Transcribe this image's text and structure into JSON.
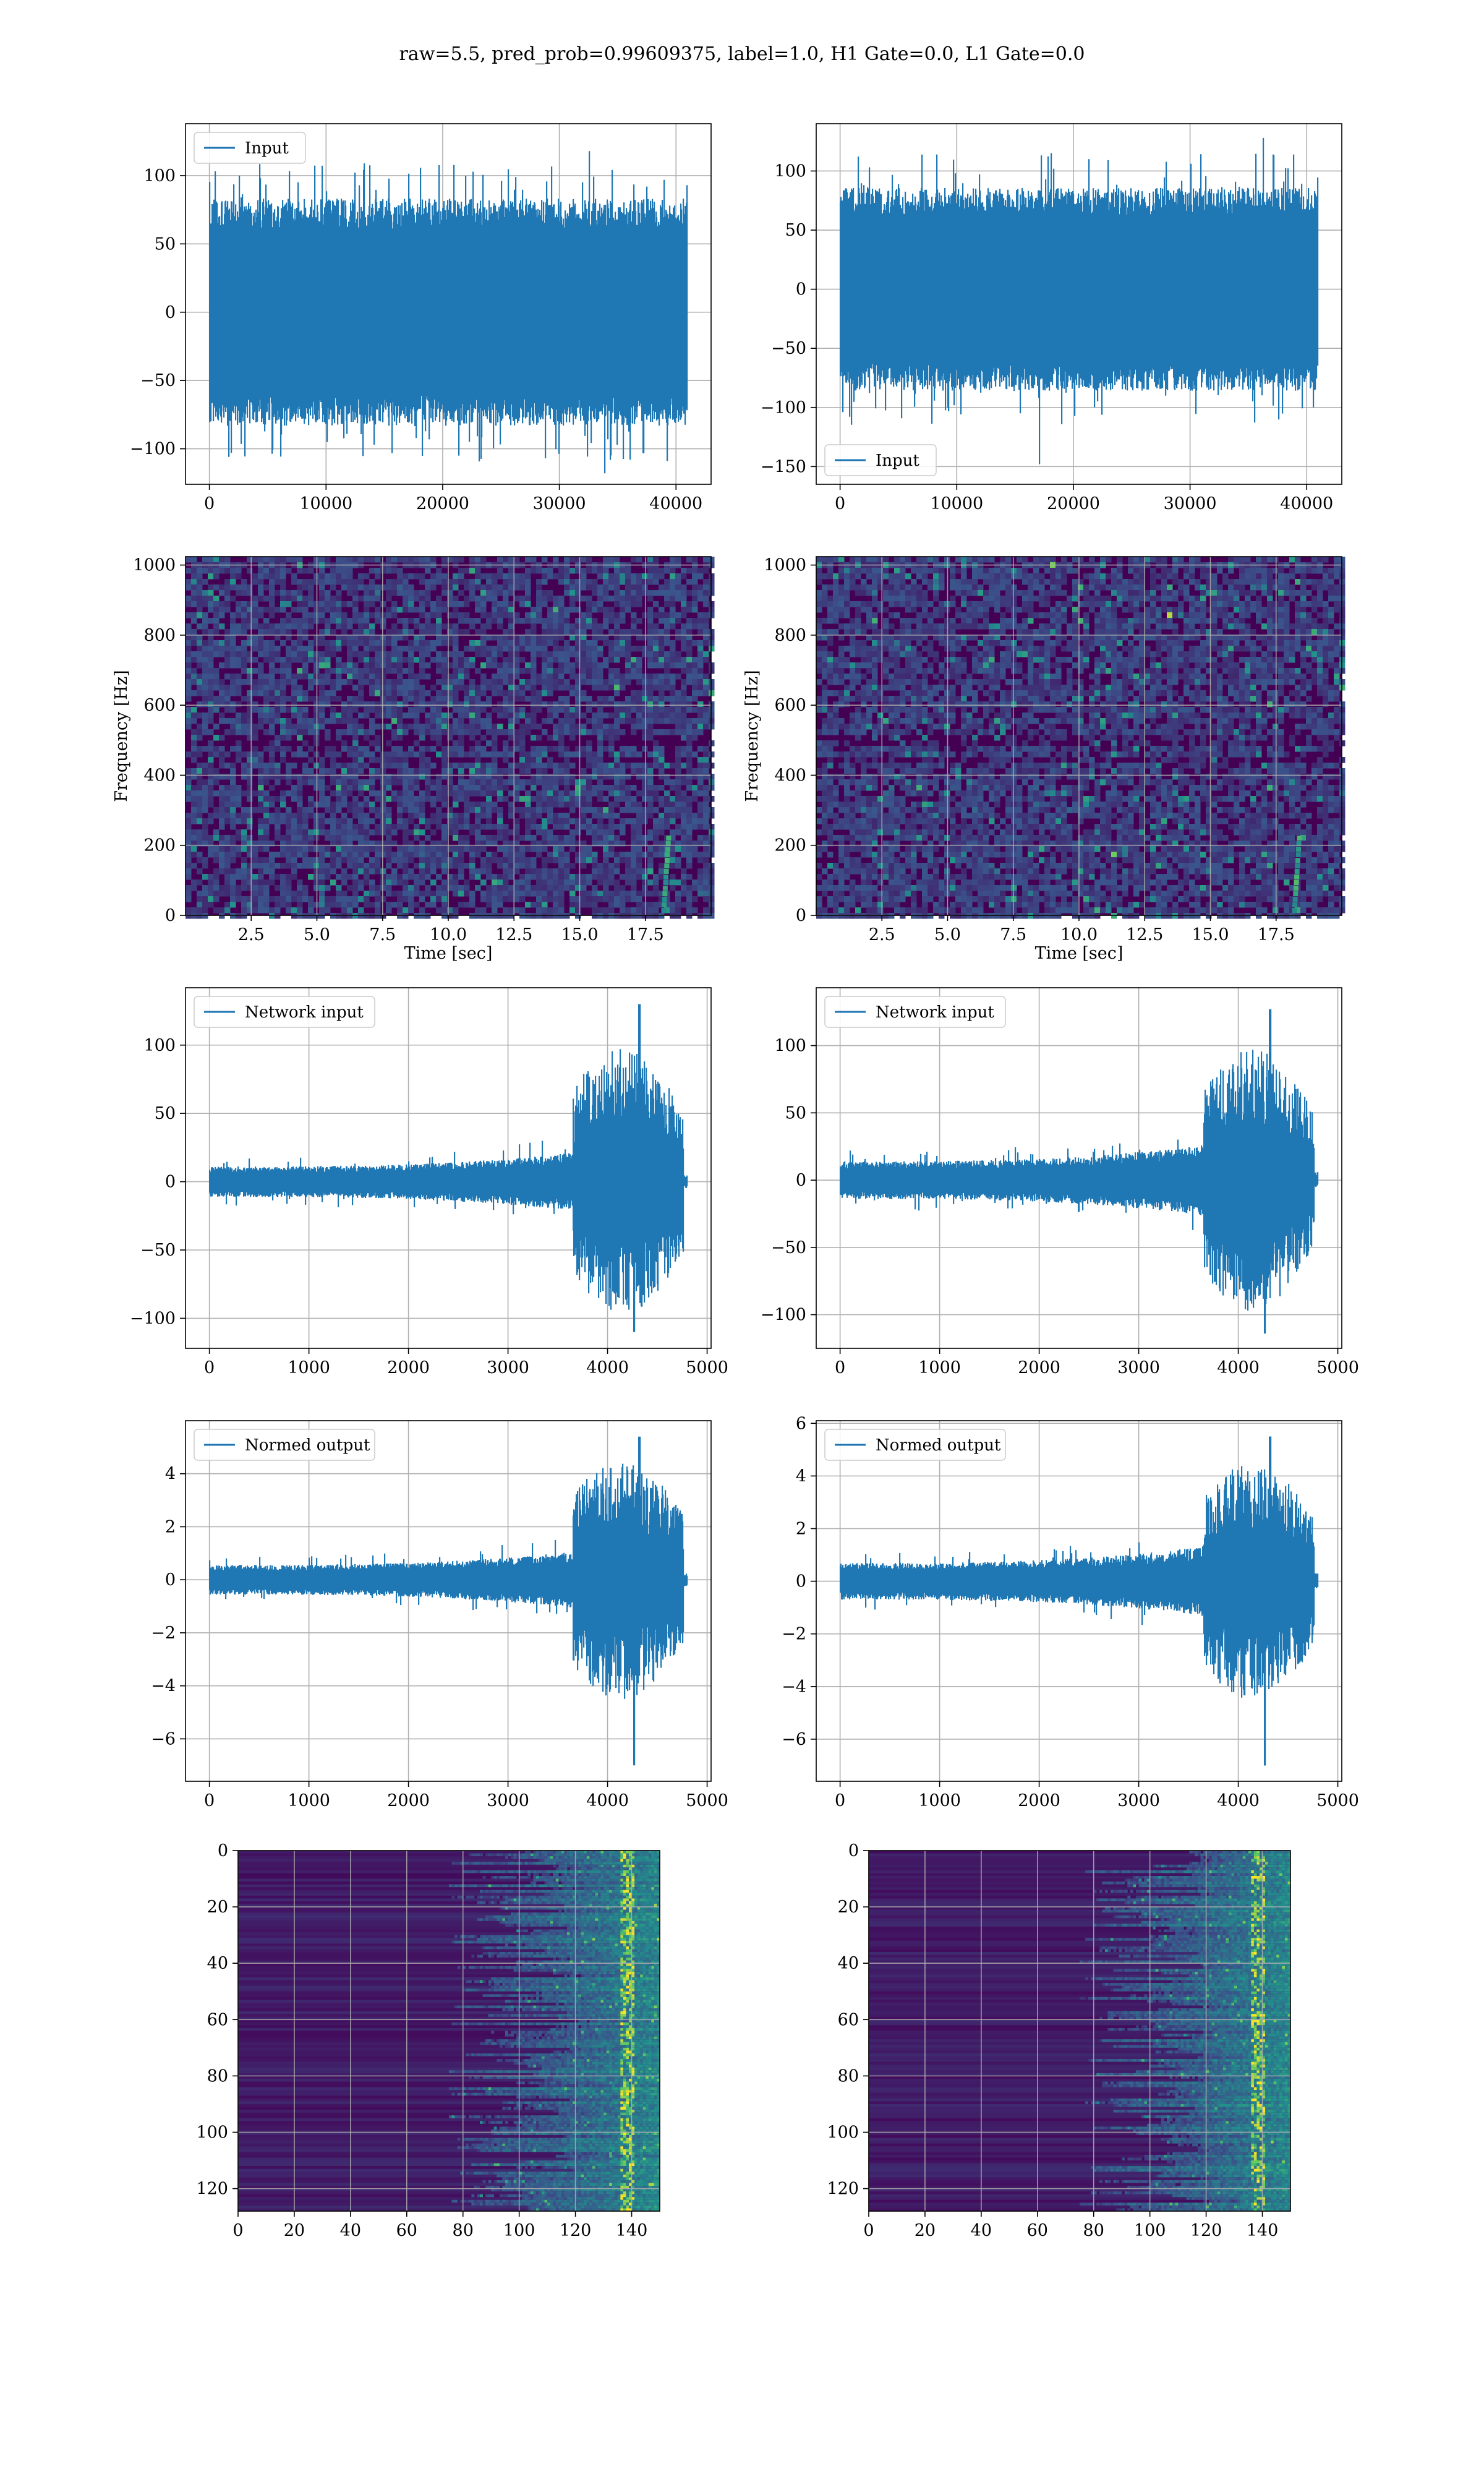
{
  "figure": {
    "title": "raw=5.5, pred_prob=0.99609375, label=1.0, H1 Gate=0.0, L1 Gate=0.0"
  },
  "colors": {
    "line": "#1f77b4",
    "viridis_low": "#440154",
    "viridis_mid": "#21918c",
    "viridis_high": "#fde725",
    "grid": "#b0b0b0"
  },
  "chart_data": [
    {
      "id": "row1-left",
      "type": "line",
      "series": [
        {
          "name": "Input",
          "kind": "noise",
          "n": 40960,
          "amp_std": 32,
          "peak_max": 118,
          "peak_min": -118
        }
      ],
      "xlim": [
        -2048,
        43008
      ],
      "ylim": [
        -126,
        138
      ],
      "xticks": [
        0,
        10000,
        20000,
        30000,
        40000
      ],
      "xticklabels": [
        "0",
        "10000",
        "20000",
        "30000",
        "40000"
      ],
      "yticks": [
        -100,
        -50,
        0,
        50,
        100
      ],
      "yticklabels": [
        "−100",
        "−50",
        "0",
        "50",
        "100"
      ],
      "legend": "upper-left",
      "grid": true,
      "xlabel": "",
      "ylabel": ""
    },
    {
      "id": "row1-right",
      "type": "line",
      "series": [
        {
          "name": "Input",
          "kind": "noise",
          "n": 40960,
          "amp_std": 33,
          "peak_max": 128,
          "peak_min": -148
        }
      ],
      "xlim": [
        -2048,
        43008
      ],
      "ylim": [
        -165,
        140
      ],
      "xticks": [
        0,
        10000,
        20000,
        30000,
        40000
      ],
      "xticklabels": [
        "0",
        "10000",
        "20000",
        "30000",
        "40000"
      ],
      "yticks": [
        -150,
        -100,
        -50,
        0,
        50,
        100
      ],
      "yticklabels": [
        "−150",
        "−100",
        "−50",
        "0",
        "50",
        "100"
      ],
      "legend": "lower-left",
      "grid": true,
      "xlabel": "",
      "ylabel": ""
    },
    {
      "id": "row2-left",
      "type": "heatmap",
      "style": "spectrogram",
      "xlim": [
        0,
        20
      ],
      "ylim": [
        0,
        1024
      ],
      "xticks": [
        2.5,
        5.0,
        7.5,
        10.0,
        12.5,
        15.0,
        17.5
      ],
      "xticklabels": [
        "2.5",
        "5.0",
        "7.5",
        "10.0",
        "12.5",
        "15.0",
        "17.5"
      ],
      "yticks": [
        0,
        200,
        400,
        600,
        800,
        1000
      ],
      "yticklabels": [
        "0",
        "200",
        "400",
        "600",
        "800",
        "1000"
      ],
      "xlabel": "Time [sec]",
      "ylabel": "Frequency [Hz]",
      "grid": true,
      "colormap": "viridis"
    },
    {
      "id": "row2-right",
      "type": "heatmap",
      "style": "spectrogram",
      "xlim": [
        0,
        20
      ],
      "ylim": [
        0,
        1024
      ],
      "xticks": [
        2.5,
        5.0,
        7.5,
        10.0,
        12.5,
        15.0,
        17.5
      ],
      "xticklabels": [
        "2.5",
        "5.0",
        "7.5",
        "10.0",
        "12.5",
        "15.0",
        "17.5"
      ],
      "yticks": [
        0,
        200,
        400,
        600,
        800,
        1000
      ],
      "yticklabels": [
        "0",
        "200",
        "400",
        "600",
        "800",
        "1000"
      ],
      "xlabel": "Time [sec]",
      "ylabel": "Frequency [Hz]",
      "grid": true,
      "colormap": "viridis"
    },
    {
      "id": "row3-left",
      "type": "line",
      "series": [
        {
          "name": "Network input",
          "kind": "burst",
          "n": 4800,
          "base_std": 4,
          "burst_start": 3650,
          "burst_end": 4760,
          "burst_std": 30,
          "peak_max": 130,
          "peak_min": -110,
          "tail_end": 4800
        }
      ],
      "xlim": [
        -240,
        5040
      ],
      "ylim": [
        -122,
        142
      ],
      "xticks": [
        0,
        1000,
        2000,
        3000,
        4000,
        5000
      ],
      "xticklabels": [
        "0",
        "1000",
        "2000",
        "3000",
        "4000",
        "5000"
      ],
      "yticks": [
        -100,
        -50,
        0,
        50,
        100
      ],
      "yticklabels": [
        "−100",
        "−50",
        "0",
        "50",
        "100"
      ],
      "legend": "upper-left",
      "grid": true,
      "xlabel": "",
      "ylabel": ""
    },
    {
      "id": "row3-right",
      "type": "line",
      "series": [
        {
          "name": "Network input",
          "kind": "burst",
          "n": 4800,
          "base_std": 5,
          "burst_start": 3650,
          "burst_end": 4760,
          "burst_std": 30,
          "peak_max": 127,
          "peak_min": -114,
          "tail_end": 4800
        }
      ],
      "xlim": [
        -240,
        5040
      ],
      "ylim": [
        -125,
        143
      ],
      "xticks": [
        0,
        1000,
        2000,
        3000,
        4000,
        5000
      ],
      "xticklabels": [
        "0",
        "1000",
        "2000",
        "3000",
        "4000",
        "5000"
      ],
      "yticks": [
        -100,
        -50,
        0,
        50,
        100
      ],
      "yticklabels": [
        "−100",
        "−50",
        "0",
        "50",
        "100"
      ],
      "legend": "upper-left",
      "grid": true,
      "xlabel": "",
      "ylabel": ""
    },
    {
      "id": "row4-left",
      "type": "line",
      "series": [
        {
          "name": "Normed output",
          "kind": "burst",
          "n": 4800,
          "base_std": 0.2,
          "burst_start": 3650,
          "burst_end": 4760,
          "burst_std": 1.4,
          "peak_max": 5.4,
          "peak_min": -7.0,
          "tail_end": 4800
        }
      ],
      "xlim": [
        -240,
        5040
      ],
      "ylim": [
        -7.6,
        6.0
      ],
      "xticks": [
        0,
        1000,
        2000,
        3000,
        4000,
        5000
      ],
      "xticklabels": [
        "0",
        "1000",
        "2000",
        "3000",
        "4000",
        "5000"
      ],
      "yticks": [
        -6,
        -4,
        -2,
        0,
        2,
        4
      ],
      "yticklabels": [
        "−6",
        "−4",
        "−2",
        "0",
        "2",
        "4"
      ],
      "legend": "upper-left",
      "grid": true,
      "xlabel": "",
      "ylabel": ""
    },
    {
      "id": "row4-right",
      "type": "line",
      "series": [
        {
          "name": "Normed output",
          "kind": "burst",
          "n": 4800,
          "base_std": 0.25,
          "burst_start": 3650,
          "burst_end": 4760,
          "burst_std": 1.4,
          "peak_max": 5.5,
          "peak_min": -7.0,
          "tail_end": 4800
        }
      ],
      "xlim": [
        -240,
        5040
      ],
      "ylim": [
        -7.6,
        6.1
      ],
      "xticks": [
        0,
        1000,
        2000,
        3000,
        4000,
        5000
      ],
      "xticklabels": [
        "0",
        "1000",
        "2000",
        "3000",
        "4000",
        "5000"
      ],
      "yticks": [
        -6,
        -4,
        -2,
        0,
        2,
        4,
        6
      ],
      "yticklabels": [
        "−6",
        "−4",
        "−2",
        "0",
        "2",
        "4",
        "6"
      ],
      "legend": "upper-left",
      "grid": true,
      "xlabel": "",
      "ylabel": ""
    },
    {
      "id": "row5-left",
      "type": "heatmap",
      "style": "feature-map",
      "xlim": [
        0,
        150
      ],
      "ylim": [
        128,
        0
      ],
      "xticks": [
        0,
        20,
        40,
        60,
        80,
        100,
        120,
        140
      ],
      "xticklabels": [
        "0",
        "20",
        "40",
        "60",
        "80",
        "100",
        "120",
        "140"
      ],
      "yticks": [
        0,
        20,
        40,
        60,
        80,
        100,
        120
      ],
      "yticklabels": [
        "0",
        "20",
        "40",
        "60",
        "80",
        "100",
        "120"
      ],
      "xlabel": "",
      "ylabel": "",
      "grid": true,
      "colormap": "viridis",
      "activity_start": 100,
      "bright_column": 138
    },
    {
      "id": "row5-right",
      "type": "heatmap",
      "style": "feature-map",
      "xlim": [
        0,
        150
      ],
      "ylim": [
        128,
        0
      ],
      "xticks": [
        0,
        20,
        40,
        60,
        80,
        100,
        120,
        140
      ],
      "xticklabels": [
        "0",
        "20",
        "40",
        "60",
        "80",
        "100",
        "120",
        "140"
      ],
      "yticks": [
        0,
        20,
        40,
        60,
        80,
        100,
        120
      ],
      "yticklabels": [
        "0",
        "20",
        "40",
        "60",
        "80",
        "100",
        "120"
      ],
      "xlabel": "",
      "ylabel": "",
      "grid": true,
      "colormap": "viridis",
      "activity_start": 100,
      "bright_column": 138
    }
  ]
}
